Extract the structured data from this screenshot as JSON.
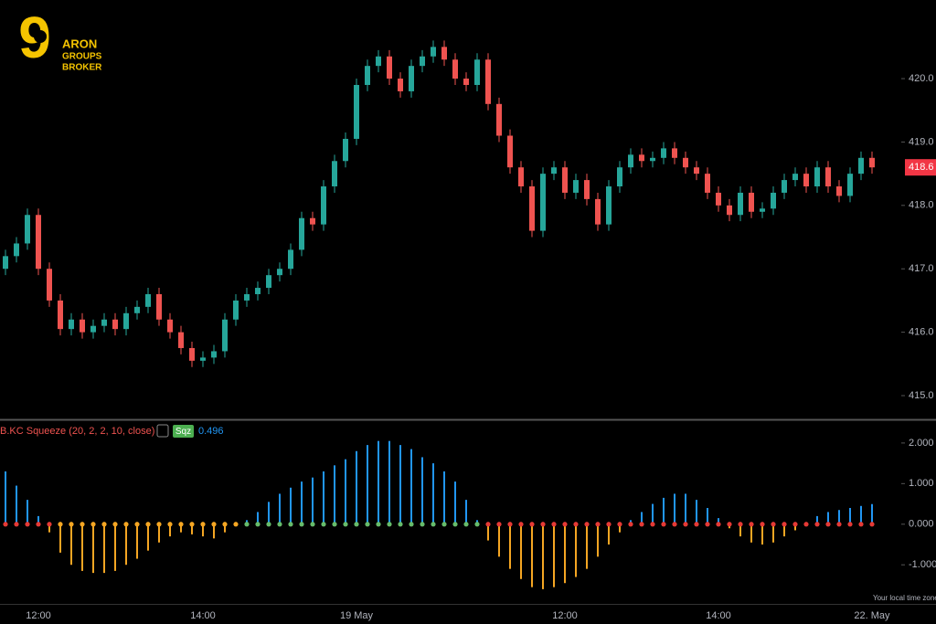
{
  "logo": {
    "digit": "9",
    "line1": "ARON",
    "line2": "GROUPS",
    "line3": "BROKER"
  },
  "footer_note": "Your local time zone",
  "chart_data": [
    {
      "type": "candlestick",
      "categories": [
        null,
        null,
        null,
        "12:00",
        null,
        null,
        null,
        null,
        null,
        null,
        null,
        null,
        null,
        null,
        null,
        null,
        null,
        null,
        "14:00",
        null,
        null,
        null,
        null,
        null,
        null,
        null,
        null,
        null,
        null,
        null,
        null,
        null,
        "19 May",
        null,
        null,
        null,
        null,
        null,
        null,
        null,
        null,
        null,
        null,
        null,
        null,
        null,
        null,
        null,
        null,
        null,
        null,
        "12:00",
        null,
        null,
        null,
        null,
        null,
        null,
        null,
        null,
        null,
        null,
        null,
        null,
        null,
        "14:00",
        null,
        null,
        null,
        null,
        null,
        null,
        null,
        null,
        null,
        null,
        null,
        null,
        null,
        "22. May"
      ],
      "open": [
        417.0,
        417.2,
        417.4,
        417.85,
        417.0,
        416.5,
        416.05,
        416.2,
        416.0,
        416.1,
        416.2,
        416.05,
        416.3,
        416.4,
        416.6,
        416.2,
        416.0,
        415.75,
        415.55,
        415.6,
        415.7,
        416.2,
        416.5,
        416.6,
        416.7,
        416.9,
        417.0,
        417.3,
        417.8,
        417.7,
        418.3,
        418.7,
        419.05,
        419.9,
        420.2,
        420.35,
        420.0,
        419.8,
        420.2,
        420.35,
        420.5,
        420.3,
        420.0,
        419.9,
        420.3,
        419.6,
        419.1,
        418.6,
        418.3,
        417.6,
        418.5,
        418.6,
        418.2,
        418.4,
        418.1,
        417.7,
        418.3,
        418.6,
        418.8,
        418.7,
        418.75,
        418.9,
        418.75,
        418.6,
        418.5,
        418.2,
        418.0,
        417.85,
        418.2,
        417.9,
        417.95,
        418.2,
        418.4,
        418.5,
        418.3,
        418.6,
        418.3,
        418.15,
        418.5,
        418.75
      ],
      "high": [
        417.3,
        417.5,
        417.95,
        417.95,
        417.1,
        416.6,
        416.3,
        416.3,
        416.2,
        416.3,
        416.3,
        416.4,
        416.5,
        416.7,
        416.7,
        416.3,
        416.1,
        415.85,
        415.7,
        415.8,
        416.3,
        416.6,
        416.7,
        416.8,
        417.0,
        417.1,
        417.4,
        417.9,
        417.9,
        418.4,
        418.8,
        419.15,
        420.0,
        420.3,
        420.45,
        420.45,
        420.1,
        420.3,
        420.45,
        420.6,
        420.6,
        420.4,
        420.1,
        420.4,
        420.4,
        419.7,
        419.2,
        418.7,
        418.4,
        418.6,
        418.7,
        418.7,
        418.5,
        418.5,
        418.2,
        418.4,
        418.7,
        418.9,
        418.9,
        418.85,
        419.0,
        419.0,
        418.85,
        418.7,
        418.6,
        418.3,
        418.1,
        418.3,
        418.3,
        418.05,
        418.3,
        418.5,
        418.6,
        418.6,
        418.7,
        418.7,
        418.4,
        418.6,
        418.85,
        418.85
      ],
      "low": [
        416.9,
        417.1,
        417.3,
        416.9,
        416.4,
        415.95,
        415.95,
        415.9,
        415.9,
        416.0,
        415.95,
        415.95,
        416.2,
        416.3,
        416.1,
        415.9,
        415.65,
        415.45,
        415.45,
        415.5,
        415.6,
        416.1,
        416.4,
        416.5,
        416.6,
        416.8,
        416.9,
        417.2,
        417.6,
        417.6,
        418.2,
        418.6,
        418.95,
        419.8,
        420.1,
        419.9,
        419.7,
        419.7,
        420.1,
        420.25,
        420.2,
        419.9,
        419.8,
        419.8,
        419.5,
        419.0,
        418.5,
        418.2,
        417.5,
        417.5,
        418.4,
        418.1,
        418.1,
        418.0,
        417.6,
        417.6,
        418.2,
        418.5,
        418.6,
        418.6,
        418.65,
        418.65,
        418.5,
        418.4,
        418.1,
        417.9,
        417.75,
        417.75,
        417.8,
        417.8,
        417.85,
        418.1,
        418.3,
        418.2,
        418.2,
        418.2,
        418.05,
        418.05,
        418.4,
        418.5
      ],
      "close": [
        417.2,
        417.4,
        417.85,
        417.0,
        416.5,
        416.05,
        416.2,
        416.0,
        416.1,
        416.2,
        416.05,
        416.3,
        416.4,
        416.6,
        416.2,
        416.0,
        415.75,
        415.55,
        415.6,
        415.7,
        416.2,
        416.5,
        416.6,
        416.7,
        416.9,
        417.0,
        417.3,
        417.8,
        417.7,
        418.3,
        418.7,
        419.05,
        419.9,
        420.2,
        420.35,
        420.0,
        419.8,
        420.2,
        420.35,
        420.5,
        420.3,
        420.0,
        419.9,
        420.3,
        419.6,
        419.1,
        418.6,
        418.3,
        417.6,
        418.5,
        418.6,
        418.2,
        418.4,
        418.1,
        417.7,
        418.3,
        418.6,
        418.8,
        418.7,
        418.75,
        418.9,
        418.75,
        418.6,
        418.5,
        418.2,
        418.0,
        417.85,
        418.2,
        417.9,
        417.95,
        418.2,
        418.4,
        418.5,
        418.3,
        418.6,
        418.3,
        418.15,
        418.5,
        418.75,
        418.6
      ],
      "up_color": "#26a69a",
      "down_color": "#ef5350",
      "ylim": [
        414.64,
        421.24
      ],
      "yticks": [
        {
          "value": 415,
          "label": "415.0"
        },
        {
          "value": 416,
          "label": "416.0"
        },
        {
          "value": 417,
          "label": "417.0"
        },
        {
          "value": 418,
          "label": "418.0"
        },
        {
          "value": 419,
          "label": "419.0"
        },
        {
          "value": 420,
          "label": "420.0"
        }
      ],
      "last_price": {
        "value": 418.6,
        "label": "418.6"
      },
      "last_price_color": "#f23645"
    },
    {
      "type": "bar",
      "title": "B.KC Squeeze (20, 2, 2, 10, close)",
      "badge": "Sqz",
      "current_value": 0.496,
      "values": [
        1.3,
        0.95,
        0.6,
        0.2,
        -0.2,
        -0.7,
        -1.0,
        -1.15,
        -1.2,
        -1.2,
        -1.15,
        -1.0,
        -0.85,
        -0.65,
        -0.45,
        -0.3,
        -0.2,
        -0.25,
        -0.3,
        -0.35,
        -0.2,
        -0.05,
        0.1,
        0.3,
        0.55,
        0.75,
        0.9,
        1.05,
        1.15,
        1.3,
        1.45,
        1.6,
        1.8,
        1.95,
        2.05,
        2.05,
        1.95,
        1.85,
        1.65,
        1.5,
        1.3,
        1.05,
        0.6,
        0.1,
        -0.4,
        -0.8,
        -1.1,
        -1.35,
        -1.55,
        -1.6,
        -1.55,
        -1.45,
        -1.3,
        -1.1,
        -0.8,
        -0.5,
        -0.2,
        0.1,
        0.3,
        0.5,
        0.65,
        0.75,
        0.75,
        0.6,
        0.4,
        0.15,
        -0.1,
        -0.3,
        -0.45,
        -0.5,
        -0.45,
        -0.3,
        -0.15,
        0.05,
        0.2,
        0.3,
        0.35,
        0.4,
        0.45,
        0.496
      ],
      "positive_color": "#2196f3",
      "negative_color": "#f5a623",
      "squeeze_dots": [
        {
          "color": "#e53935",
          "count": 5
        },
        {
          "color": "#f5a623",
          "count": 17
        },
        {
          "color": "#66bb6a",
          "count": 22
        },
        {
          "color": "#e53935",
          "count": 36
        }
      ],
      "ylim": [
        -1.94,
        2.56
      ],
      "yticks": [
        {
          "value": -1,
          "label": "-1.000"
        },
        {
          "value": 0,
          "label": "0.000"
        },
        {
          "value": 1,
          "label": "1.000"
        },
        {
          "value": 2,
          "label": "2.000"
        }
      ]
    }
  ]
}
